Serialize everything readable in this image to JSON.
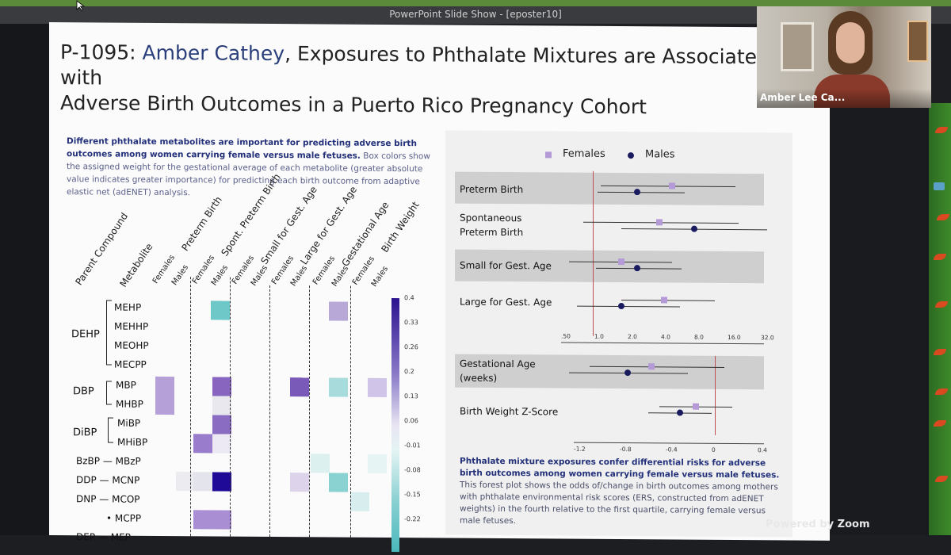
{
  "window": {
    "title": "PowerPoint Slide Show - [eposter10]"
  },
  "slide": {
    "id": "P-1095:",
    "author": "Amber Cathey",
    "title_rest": ", Exposures to Phthalate Mixtures are Associated with",
    "title_line2": "Adverse Birth Outcomes in a Puerto Rico Pregnancy Cohort",
    "desc_bold": "Different phthalate metabolites are important for predicting adverse birth outcomes among women carrying female versus male fetuses.",
    "desc_rest": " Box colors show the assigned weight for the gestational average of each metabolite (greater absolute value indicates greater importance) for predicting each birth outcome from adaptive elastic net (adENET) analysis."
  },
  "heatmap": {
    "col_header_parent": "Parent Compound",
    "col_header_metabolite": "Metabolite",
    "outcomes": [
      "Preterm Birth",
      "Spont. Preterm Birth",
      "Small for Gest. Age",
      "Large for Gest. Age",
      "Gestational Age",
      "Birth Weight"
    ],
    "sexes": [
      "Females",
      "Males"
    ],
    "parents": [
      "DEHP",
      "DBP",
      "DiBP",
      "BzBP",
      "DDP",
      "DNP",
      "DEP"
    ],
    "metabolites": [
      "MEHP",
      "MEHHP",
      "MEOHP",
      "MECPP",
      "MBP",
      "MHBP",
      "MiBP",
      "MHiBP",
      "MBzP",
      "MCNP",
      "MCOP",
      "MCPP",
      "MEP"
    ],
    "dash": "—",
    "dot": "•",
    "colorbar_ticks": [
      "0.4",
      "0.33",
      "0.26",
      "0.2",
      "0.13",
      "0.06",
      "-0.01",
      "-0.08",
      "-0.15",
      "-0.22"
    ],
    "colors": {
      "high": "#2a1290",
      "low": "#4ab8bc",
      "zero": "#f4f4f4"
    }
  },
  "forest": {
    "legend_females": "Females",
    "legend_males": "Males",
    "rows": [
      "Preterm Birth",
      "Spontaneous Preterm Birth",
      "Small for Gest. Age",
      "Large for Gest. Age"
    ],
    "row_labels_split": [
      [
        "Preterm Birth"
      ],
      [
        "Spontaneous",
        "Preterm Birth"
      ],
      [
        "Small for Gest. Age"
      ],
      [
        "Large for Gest. Age"
      ]
    ],
    "x_ticks_or": [
      ".50",
      "1.0",
      "2.0",
      "4.0",
      "8.0",
      "16.0",
      "32.0"
    ],
    "rows2": [
      "Gestational Age (weeks)",
      "Birth Weight Z-Score"
    ],
    "row2_labels_split": [
      [
        "Gestational Age",
        "(weeks)"
      ],
      [
        "Birth Weight Z-Score"
      ]
    ],
    "x_ticks_beta": [
      "-1.2",
      "-0.8",
      "-0.4",
      "0",
      "0.4"
    ],
    "colors": {
      "females": "#b59ad8",
      "males": "#1a1a5e",
      "ref_line": "#c05050"
    }
  },
  "conclusion": {
    "bold": "Phthalate mixture exposures confer differential risks for adverse birth outcomes among women carrying female versus male fetuses.",
    "rest": " This forest plot shows the odds of/change in birth outcomes among mothers with phthalate environmental risk scores (ERS, constructed from adENET weights) in the fourth relative to the first quartile, carrying female versus male fetuses."
  },
  "video": {
    "participant": "Amber Lee Ca..."
  },
  "zoom": {
    "watermark": "Powered by Zoom"
  }
}
